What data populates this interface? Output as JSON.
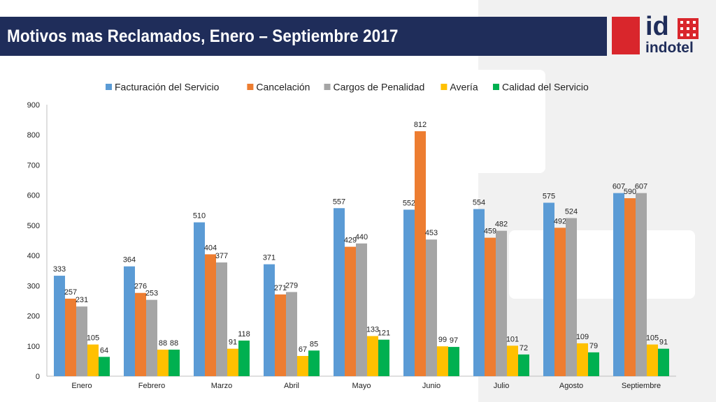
{
  "slide": {
    "title": "Motivos mas Reclamados, Enero – Septiembre 2017",
    "logo": {
      "mark": "id",
      "word": "indotel"
    }
  },
  "chart_data": {
    "type": "bar",
    "categories": [
      "Enero",
      "Febrero",
      "Marzo",
      "Abril",
      "Mayo",
      "Junio",
      "Julio",
      "Agosto",
      "Septiembre"
    ],
    "series": [
      {
        "name": "Facturación del Servicio",
        "color": "#5b9bd5",
        "values": [
          333,
          364,
          510,
          371,
          557,
          552,
          554,
          575,
          607
        ]
      },
      {
        "name": "Cancelación",
        "color": "#ed7d31",
        "values": [
          257,
          276,
          404,
          271,
          429,
          812,
          459,
          492,
          590
        ]
      },
      {
        "name": "Cargos de Penalidad",
        "color": "#a5a5a5",
        "values": [
          231,
          253,
          377,
          279,
          440,
          453,
          482,
          524,
          607
        ]
      },
      {
        "name": "Avería",
        "color": "#ffc000",
        "values": [
          105,
          88,
          91,
          67,
          133,
          99,
          101,
          109,
          105
        ]
      },
      {
        "name": "Calidad del Servicio",
        "color": "#00b050",
        "values": [
          64,
          88,
          118,
          85,
          121,
          97,
          72,
          79,
          91
        ]
      }
    ],
    "ylim": [
      0,
      900
    ],
    "yticks": [
      0,
      100,
      200,
      300,
      400,
      500,
      600,
      700,
      800,
      900
    ],
    "legend": "top",
    "grid": false,
    "data_labels": true
  }
}
